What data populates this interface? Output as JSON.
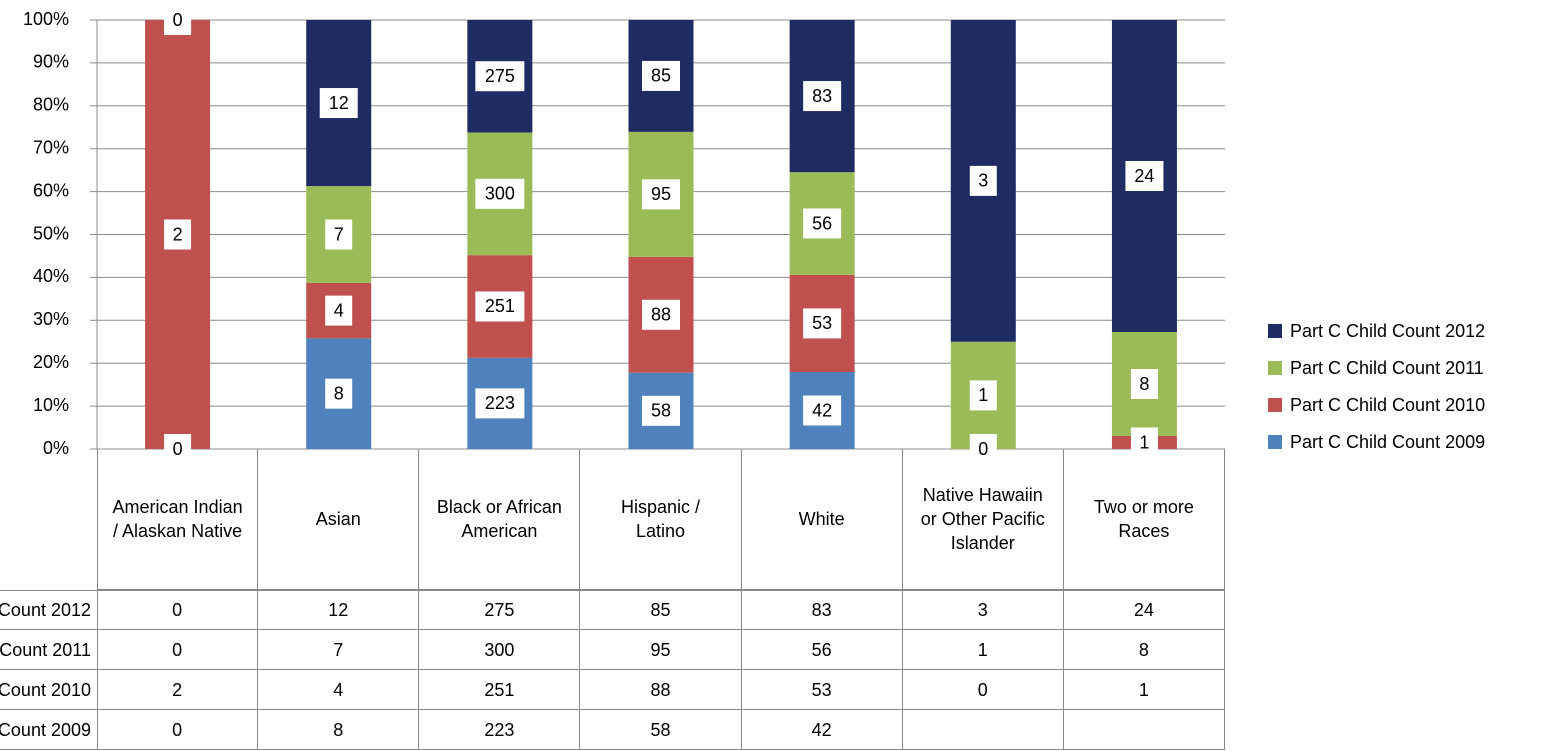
{
  "chart_data": {
    "type": "stacked_bar_100",
    "categories": [
      "American Indian / Alaskan Native",
      "Asian",
      "Black or African American",
      "Hispanic / Latino",
      "White",
      "Native Hawaiin or Other Pacific Islander",
      "Two or more Races"
    ],
    "series": [
      {
        "name": "Part C Child Count 2012",
        "color": "#1f2b63",
        "values": [
          0,
          12,
          275,
          85,
          83,
          3,
          24
        ]
      },
      {
        "name": "Part C Child Count 2011",
        "color": "#9bbb59",
        "values": [
          0,
          7,
          300,
          95,
          56,
          1,
          8
        ]
      },
      {
        "name": "Part C Child Count 2010",
        "color": "#c0504d",
        "values": [
          2,
          4,
          251,
          88,
          53,
          0,
          1
        ]
      },
      {
        "name": "Part C Child Count 2009",
        "color": "#4f81bd",
        "values": [
          0,
          8,
          223,
          58,
          42,
          null,
          null
        ]
      }
    ],
    "ylim": [
      0,
      100
    ],
    "yticks": [
      {
        "value": 0,
        "label": "0%"
      },
      {
        "value": 10,
        "label": "10%"
      },
      {
        "value": 20,
        "label": "20%"
      },
      {
        "value": 30,
        "label": "30%"
      },
      {
        "value": 40,
        "label": "40%"
      },
      {
        "value": 50,
        "label": "50%"
      },
      {
        "value": 60,
        "label": "60%"
      },
      {
        "value": 70,
        "label": "70%"
      },
      {
        "value": 80,
        "label": "80%"
      },
      {
        "value": 90,
        "label": "90%"
      },
      {
        "value": 100,
        "label": "100%"
      }
    ],
    "grid": true,
    "legend": "right"
  }
}
